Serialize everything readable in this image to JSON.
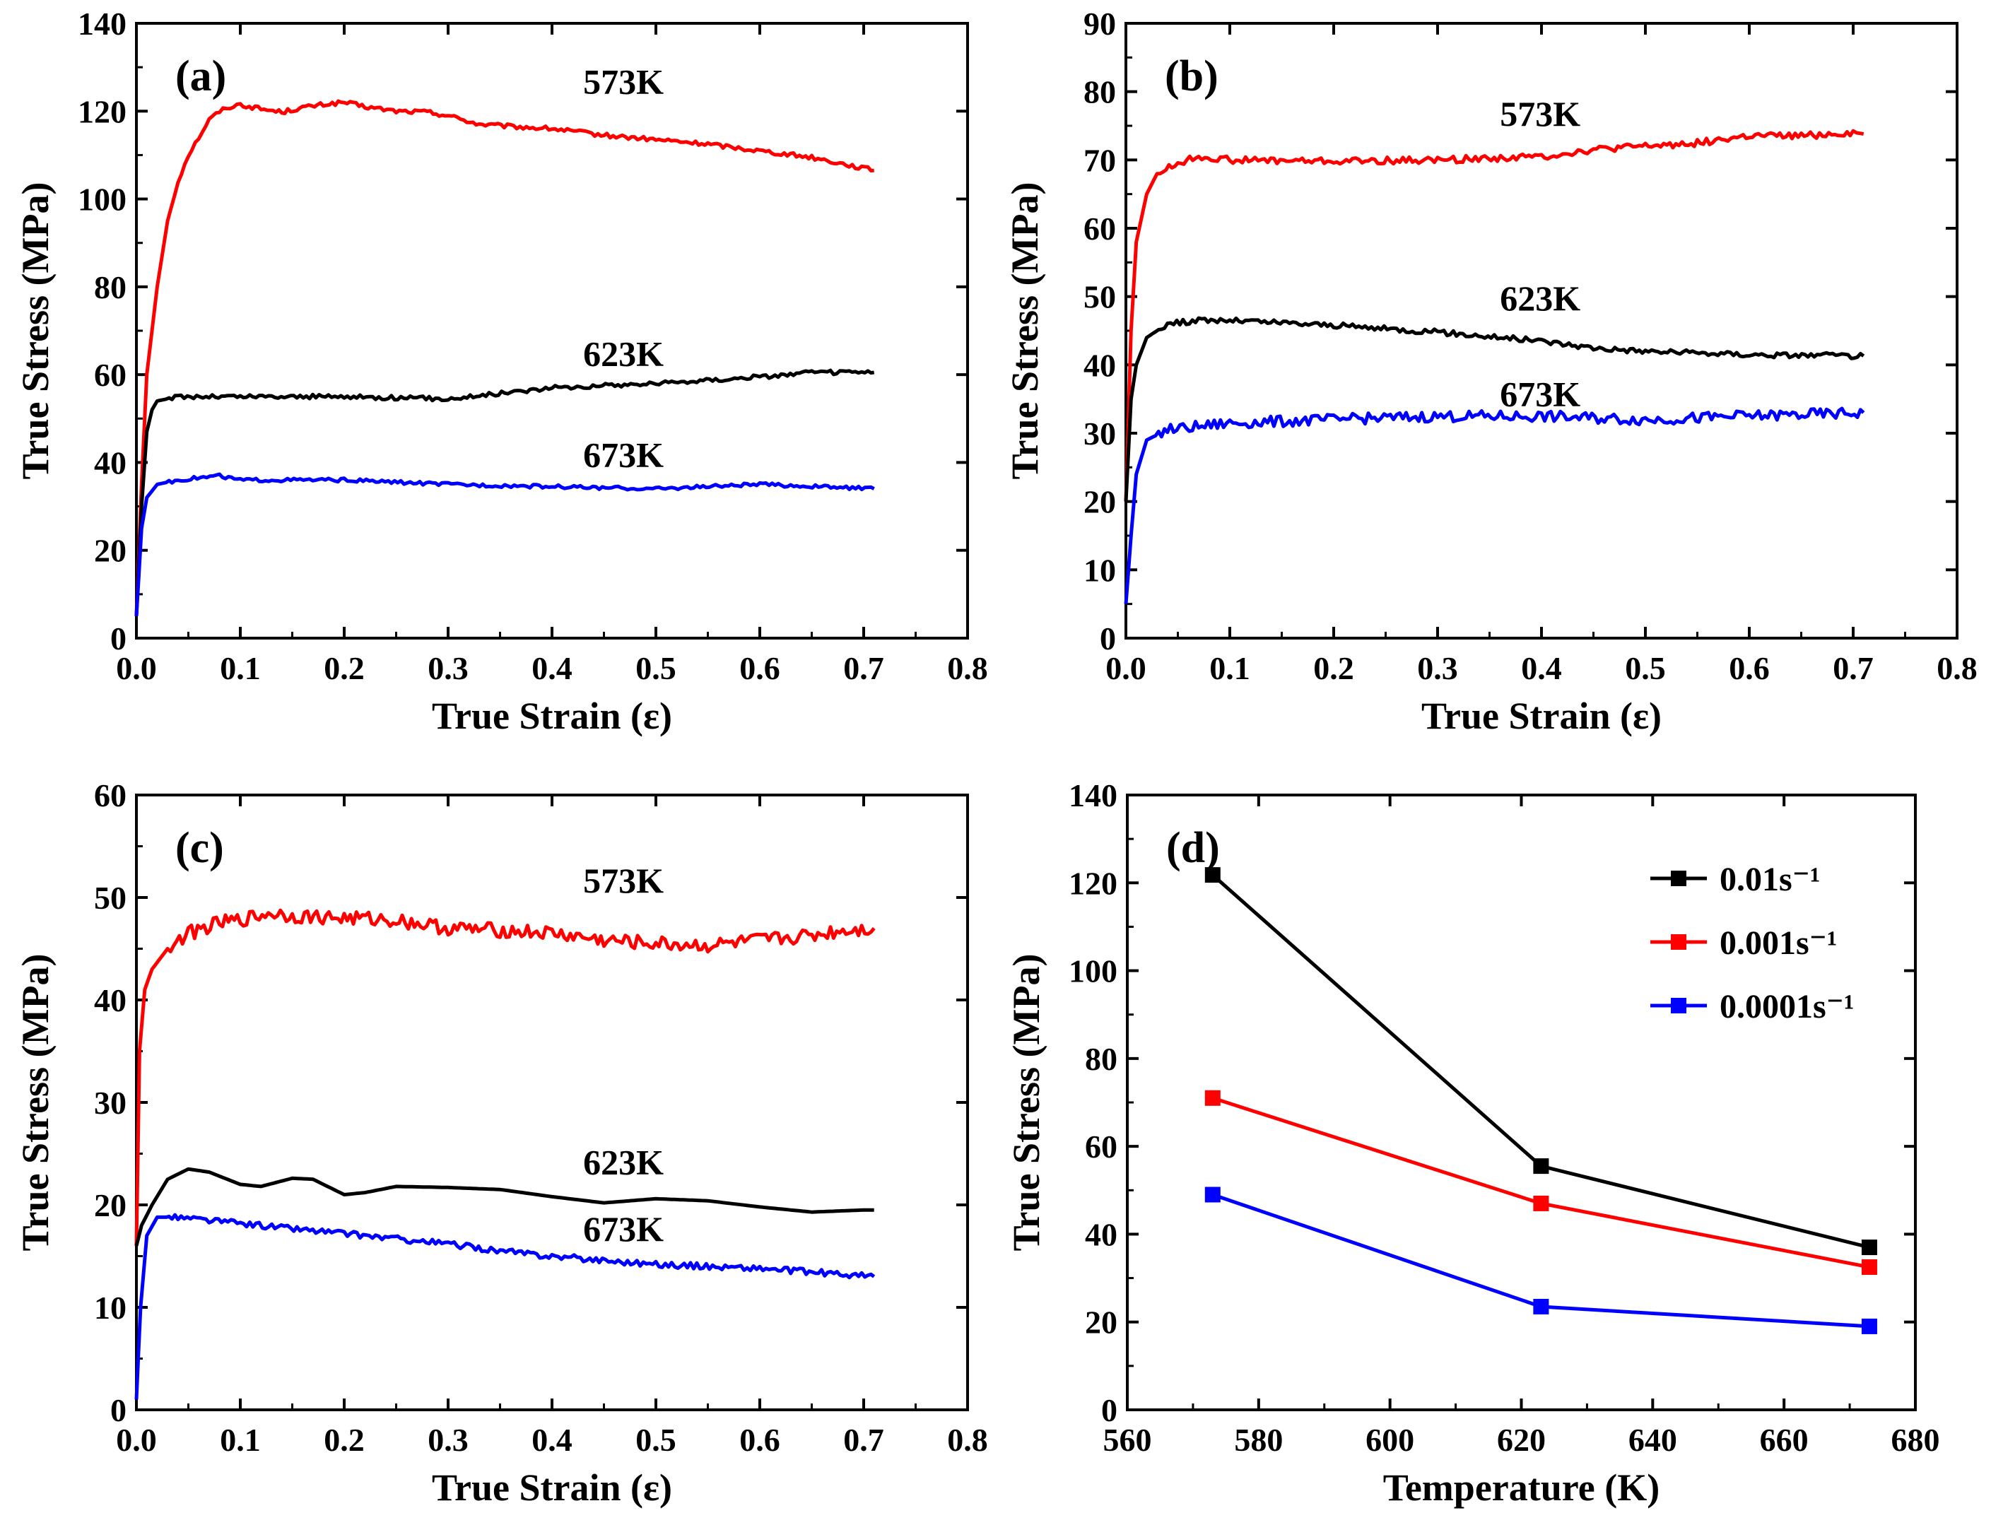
{
  "chart_data": [
    {
      "type": "line",
      "panel": "(a)",
      "xlabel": "True Strain (ε)",
      "ylabel": "True Stress (MPa)",
      "xlim": [
        0,
        0.8
      ],
      "ylim": [
        0,
        140
      ],
      "xticks": [
        "0.0",
        "0.1",
        "0.2",
        "0.3",
        "0.4",
        "0.5",
        "0.6",
        "0.7",
        "0.8"
      ],
      "yticks": [
        "0",
        "20",
        "40",
        "60",
        "80",
        "100",
        "120",
        "140"
      ],
      "grid": false,
      "series": [
        {
          "name": "573K",
          "color": "#ff0000",
          "noise": 0.5,
          "points": [
            [
              0,
              5
            ],
            [
              0.005,
              35
            ],
            [
              0.01,
              60
            ],
            [
              0.02,
              80
            ],
            [
              0.03,
              95
            ],
            [
              0.04,
              104
            ],
            [
              0.05,
              110
            ],
            [
              0.06,
              114
            ],
            [
              0.07,
              118
            ],
            [
              0.08,
              120
            ],
            [
              0.09,
              121
            ],
            [
              0.1,
              121.5
            ],
            [
              0.12,
              120.5
            ],
            [
              0.14,
              119.8
            ],
            [
              0.16,
              120.8
            ],
            [
              0.18,
              121.5
            ],
            [
              0.2,
              122
            ],
            [
              0.22,
              121
            ],
            [
              0.25,
              120
            ],
            [
              0.28,
              119.8
            ],
            [
              0.3,
              119
            ],
            [
              0.33,
              117
            ],
            [
              0.36,
              116.5
            ],
            [
              0.4,
              116
            ],
            [
              0.45,
              114.5
            ],
            [
              0.5,
              113.5
            ],
            [
              0.55,
              112.5
            ],
            [
              0.6,
              111
            ],
            [
              0.65,
              109.5
            ],
            [
              0.68,
              108
            ],
            [
              0.71,
              106.5
            ]
          ]
        },
        {
          "name": "623K",
          "color": "#000000",
          "noise": 0.5,
          "points": [
            [
              0,
              5
            ],
            [
              0.005,
              30
            ],
            [
              0.01,
              47
            ],
            [
              0.015,
              52
            ],
            [
              0.02,
              54
            ],
            [
              0.04,
              55
            ],
            [
              0.1,
              55
            ],
            [
              0.2,
              55
            ],
            [
              0.3,
              54.5
            ],
            [
              0.4,
              57
            ],
            [
              0.5,
              58
            ],
            [
              0.6,
              59.5
            ],
            [
              0.65,
              60.5
            ],
            [
              0.71,
              60.5
            ]
          ]
        },
        {
          "name": "673K",
          "color": "#0000ff",
          "noise": 0.4,
          "points": [
            [
              0,
              5
            ],
            [
              0.005,
              25
            ],
            [
              0.01,
              32
            ],
            [
              0.02,
              35
            ],
            [
              0.04,
              36
            ],
            [
              0.08,
              37
            ],
            [
              0.1,
              36
            ],
            [
              0.2,
              36
            ],
            [
              0.3,
              35
            ],
            [
              0.4,
              34.5
            ],
            [
              0.5,
              34
            ],
            [
              0.6,
              35
            ],
            [
              0.71,
              34
            ]
          ]
        }
      ],
      "annotations": [
        {
          "text": "573K",
          "x": 0.43,
          "y": 124
        },
        {
          "text": "623K",
          "x": 0.43,
          "y": 62
        },
        {
          "text": "673K",
          "x": 0.43,
          "y": 39
        }
      ]
    },
    {
      "type": "line",
      "panel": "(b)",
      "xlabel": "True Strain (ε)",
      "ylabel": "True Stress (MPa)",
      "xlim": [
        0,
        0.8
      ],
      "ylim": [
        0,
        90
      ],
      "xticks": [
        "0.0",
        "0.1",
        "0.2",
        "0.3",
        "0.4",
        "0.5",
        "0.6",
        "0.7",
        "0.8"
      ],
      "yticks": [
        "0",
        "10",
        "20",
        "30",
        "40",
        "50",
        "60",
        "70",
        "80",
        "90"
      ],
      "grid": false,
      "series": [
        {
          "name": "573K",
          "color": "#ff0000",
          "noise": 0.5,
          "points": [
            [
              0,
              20
            ],
            [
              0.005,
              45
            ],
            [
              0.01,
              58
            ],
            [
              0.02,
              65
            ],
            [
              0.03,
              68
            ],
            [
              0.05,
              69.5
            ],
            [
              0.07,
              70.5
            ],
            [
              0.1,
              70
            ],
            [
              0.2,
              69.8
            ],
            [
              0.3,
              70
            ],
            [
              0.4,
              70.5
            ],
            [
              0.45,
              71.5
            ],
            [
              0.5,
              72
            ],
            [
              0.55,
              72.5
            ],
            [
              0.6,
              73.5
            ],
            [
              0.65,
              73.5
            ],
            [
              0.7,
              74
            ],
            [
              0.71,
              73.8
            ]
          ]
        },
        {
          "name": "623K",
          "color": "#000000",
          "noise": 0.4,
          "points": [
            [
              0,
              20
            ],
            [
              0.005,
              35
            ],
            [
              0.01,
              40
            ],
            [
              0.02,
              44
            ],
            [
              0.04,
              46
            ],
            [
              0.07,
              46.5
            ],
            [
              0.1,
              46.5
            ],
            [
              0.2,
              45.8
            ],
            [
              0.3,
              44.8
            ],
            [
              0.4,
              43.5
            ],
            [
              0.45,
              42.5
            ],
            [
              0.5,
              42
            ],
            [
              0.6,
              41.5
            ],
            [
              0.71,
              41.3
            ]
          ]
        },
        {
          "name": "673K",
          "color": "#0000ff",
          "noise": 0.8,
          "points": [
            [
              0,
              5
            ],
            [
              0.005,
              15
            ],
            [
              0.01,
              24
            ],
            [
              0.02,
              29
            ],
            [
              0.04,
              30.5
            ],
            [
              0.07,
              31
            ],
            [
              0.1,
              31.5
            ],
            [
              0.2,
              32
            ],
            [
              0.3,
              32.5
            ],
            [
              0.4,
              32.5
            ],
            [
              0.5,
              32
            ],
            [
              0.6,
              32.5
            ],
            [
              0.71,
              33
            ]
          ]
        }
      ],
      "annotations": [
        {
          "text": "573K",
          "x": 0.36,
          "y": 75
        },
        {
          "text": "623K",
          "x": 0.36,
          "y": 48
        },
        {
          "text": "673K",
          "x": 0.36,
          "y": 34
        }
      ]
    },
    {
      "type": "line",
      "panel": "(c)",
      "xlabel": "True Strain (ε)",
      "ylabel": "True Stress (MPa)",
      "xlim": [
        0,
        0.8
      ],
      "ylim": [
        0,
        60
      ],
      "xticks": [
        "0.0",
        "0.1",
        "0.2",
        "0.3",
        "0.4",
        "0.5",
        "0.6",
        "0.7",
        "0.8"
      ],
      "yticks": [
        "0",
        "10",
        "20",
        "30",
        "40",
        "50",
        "60"
      ],
      "grid": false,
      "series": [
        {
          "name": "573K",
          "color": "#ff0000",
          "noise": 0.7,
          "points": [
            [
              0,
              16
            ],
            [
              0.003,
              35
            ],
            [
              0.008,
              41
            ],
            [
              0.015,
              43
            ],
            [
              0.03,
              45
            ],
            [
              0.05,
              46.5
            ],
            [
              0.08,
              47.5
            ],
            [
              0.1,
              47.8
            ],
            [
              0.13,
              48.5
            ],
            [
              0.15,
              48.2
            ],
            [
              0.2,
              48
            ],
            [
              0.25,
              47.8
            ],
            [
              0.3,
              47
            ],
            [
              0.35,
              46.8
            ],
            [
              0.4,
              46.5
            ],
            [
              0.45,
              45.8
            ],
            [
              0.5,
              45.5
            ],
            [
              0.55,
              45.3
            ],
            [
              0.6,
              45.8
            ],
            [
              0.65,
              46.3
            ],
            [
              0.68,
              46.8
            ],
            [
              0.71,
              47
            ]
          ]
        },
        {
          "name": "623K",
          "color": "#000000",
          "noise": 0,
          "points": [
            [
              0,
              16
            ],
            [
              0.005,
              18
            ],
            [
              0.015,
              20
            ],
            [
              0.03,
              22.5
            ],
            [
              0.05,
              23.5
            ],
            [
              0.07,
              23.2
            ],
            [
              0.1,
              22
            ],
            [
              0.12,
              21.8
            ],
            [
              0.15,
              22.6
            ],
            [
              0.17,
              22.5
            ],
            [
              0.2,
              21
            ],
            [
              0.22,
              21.2
            ],
            [
              0.25,
              21.8
            ],
            [
              0.3,
              21.7
            ],
            [
              0.35,
              21.5
            ],
            [
              0.4,
              20.8
            ],
            [
              0.45,
              20.2
            ],
            [
              0.5,
              20.6
            ],
            [
              0.55,
              20.4
            ],
            [
              0.6,
              19.8
            ],
            [
              0.65,
              19.3
            ],
            [
              0.7,
              19.5
            ],
            [
              0.71,
              19.5
            ]
          ]
        },
        {
          "name": "673K",
          "color": "#0000ff",
          "noise": 0.3,
          "points": [
            [
              0,
              1
            ],
            [
              0.004,
              10
            ],
            [
              0.01,
              17
            ],
            [
              0.02,
              18.8
            ],
            [
              0.04,
              18.8
            ],
            [
              0.1,
              18.2
            ],
            [
              0.2,
              17.2
            ],
            [
              0.3,
              16.2
            ],
            [
              0.35,
              15.5
            ],
            [
              0.4,
              15
            ],
            [
              0.5,
              14.2
            ],
            [
              0.6,
              13.8
            ],
            [
              0.71,
              13
            ]
          ]
        }
      ],
      "annotations": [
        {
          "text": "573K",
          "x": 0.43,
          "y": 50.5
        },
        {
          "text": "623K",
          "x": 0.43,
          "y": 23
        },
        {
          "text": "673K",
          "x": 0.43,
          "y": 16.5
        }
      ]
    },
    {
      "type": "line",
      "panel": "(d)",
      "xlabel": "Temperature (K)",
      "ylabel": "True Stress (MPa)",
      "xlim": [
        560,
        680
      ],
      "ylim": [
        0,
        140
      ],
      "xticks": [
        "560",
        "580",
        "600",
        "620",
        "640",
        "660",
        "680"
      ],
      "yticks": [
        "0",
        "20",
        "40",
        "60",
        "80",
        "100",
        "120",
        "140"
      ],
      "grid": false,
      "legend": "top-right",
      "x": [
        573,
        623,
        673
      ],
      "series": [
        {
          "name": "0.01s⁻¹",
          "color": "#000000",
          "values": [
            121.8,
            55.5,
            37
          ]
        },
        {
          "name": "0.001s⁻¹",
          "color": "#ff0000",
          "values": [
            71,
            47,
            32.5
          ]
        },
        {
          "name": "0.0001s⁻¹",
          "color": "#0000ff",
          "values": [
            49,
            23.5,
            19
          ]
        }
      ]
    }
  ]
}
